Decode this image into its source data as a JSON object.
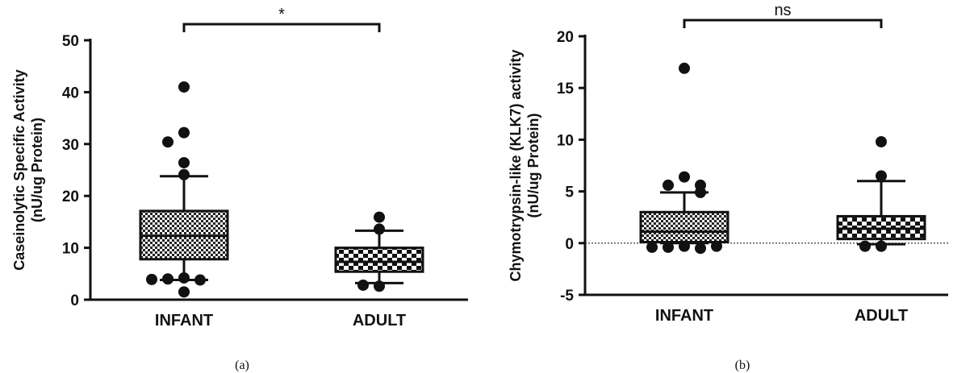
{
  "chart_data": [
    {
      "type": "box",
      "panel_label": "(a)",
      "ylabel_line1": "Caseinolytic Specific Activity",
      "ylabel_line2": "(nU/ug Protein)",
      "ylim": [
        0,
        50
      ],
      "yticks": [
        0,
        10,
        20,
        30,
        40,
        50
      ],
      "categories": [
        "INFANT",
        "ADULT"
      ],
      "boxes": [
        {
          "category": "INFANT",
          "whisker_low": 3.8,
          "q1": 7.8,
          "median": 12.3,
          "q3": 17.1,
          "whisker_high": 23.8,
          "fill": "checker-fine",
          "outliers": [
            41.0,
            32.2,
            30.4,
            26.4,
            24.1,
            4.2,
            4.0,
            3.8,
            3.9,
            1.5
          ]
        },
        {
          "category": "ADULT",
          "whisker_low": 3.2,
          "q1": 5.4,
          "median": 7.3,
          "q3": 10.0,
          "whisker_high": 13.3,
          "fill": "checker-coarse",
          "outliers": [
            15.9,
            13.6,
            2.6,
            2.8
          ]
        }
      ],
      "significance": {
        "from": "INFANT",
        "to": "ADULT",
        "label": "*"
      },
      "reference_line": null
    },
    {
      "type": "box",
      "panel_label": "(b)",
      "ylabel_line1": "Chymotrypsin-like (KLK7) activity",
      "ylabel_line2": "(nU/ug Protein)",
      "ylim": [
        -5,
        20
      ],
      "yticks": [
        -5,
        0,
        5,
        10,
        15,
        20
      ],
      "categories": [
        "INFANT",
        "ADULT"
      ],
      "boxes": [
        {
          "category": "INFANT",
          "whisker_low": 0.0,
          "q1": 0.1,
          "median": 1.1,
          "q3": 3.0,
          "whisker_high": 4.9,
          "fill": "checker-fine",
          "outliers": [
            16.9,
            6.4,
            5.6,
            5.6,
            4.9,
            -0.3,
            -0.4,
            -0.5,
            -0.4,
            -0.3
          ]
        },
        {
          "category": "ADULT",
          "whisker_low": -0.1,
          "q1": 0.4,
          "median": 1.4,
          "q3": 2.6,
          "whisker_high": 6.0,
          "fill": "checker-coarse",
          "outliers": [
            9.8,
            6.5,
            -0.3,
            -0.3
          ]
        }
      ],
      "significance": {
        "from": "INFANT",
        "to": "ADULT",
        "label": "ns"
      },
      "reference_line": {
        "y": 0,
        "style": "dotted"
      }
    }
  ]
}
